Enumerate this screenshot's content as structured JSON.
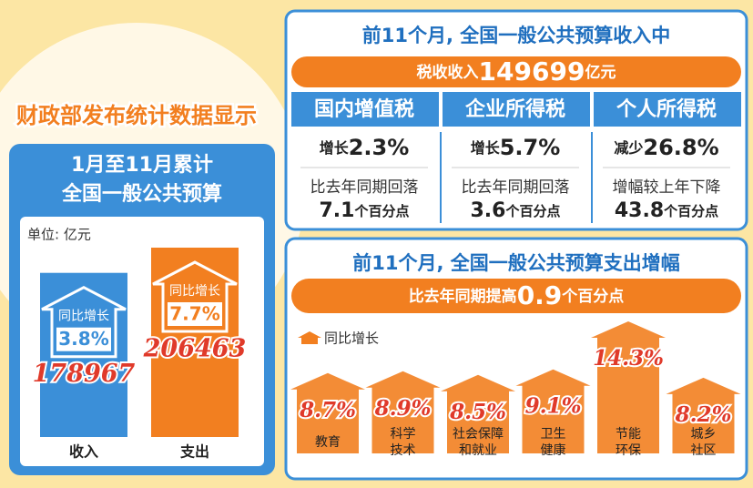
{
  "title": "财政部发布统计数据显示",
  "budget_panel": {
    "title_lines": [
      "1月至11月累计",
      "全国一般公共预算"
    ],
    "unit": "单位: 亿元"
  },
  "revenue_panel": {
    "title": "前11个月, 全国一般公共预算收入中",
    "banner": {
      "prefix": "税收收入",
      "value": 149699,
      "unit": "亿元"
    },
    "taxes": [
      {
        "name": "国内增值税",
        "change": "增长",
        "value": 2.3,
        "value_label": "2.3%",
        "note": "比去年同期回落",
        "points": 7.1,
        "points_unit": "个百分点"
      },
      {
        "name": "企业所得税",
        "change": "增长",
        "value": 5.7,
        "value_label": "5.7%",
        "note": "比去年同期回落",
        "points": 3.6,
        "points_unit": "个百分点"
      },
      {
        "name": "个人所得税",
        "change": "减少",
        "value": 26.8,
        "value_label": "26.8%",
        "note": "增幅较上年下降",
        "points": 43.8,
        "points_unit": "个百分点"
      }
    ]
  },
  "expenditure_panel": {
    "title": "前11个月, 全国一般公共预算支出增幅",
    "banner": {
      "prefix": "比去年同期提高",
      "value": 0.9,
      "unit": "个百分点"
    }
  },
  "chart_data": [
    {
      "type": "bar",
      "categories": [
        "收入",
        "支出"
      ],
      "values": [
        178967,
        206463
      ],
      "colors": [
        "#3b8fd8",
        "#f27f20"
      ],
      "growth_label": "同比增长",
      "growth": [
        3.8,
        7.7
      ],
      "growth_labels": [
        "3.8%",
        "7.7%"
      ]
    },
    {
      "type": "arrow",
      "legend": "同比增长",
      "color": "#f27f20",
      "categories": [
        [
          "教育"
        ],
        [
          "科学",
          "技术"
        ],
        [
          "社会保障",
          "和就业"
        ],
        [
          "卫生",
          "健康"
        ],
        [
          "节能",
          "环保"
        ],
        [
          "城乡",
          "社区"
        ]
      ],
      "values": [
        8.7,
        8.9,
        8.5,
        9.1,
        14.3,
        8.2
      ],
      "value_labels": [
        "8.7%",
        "8.9%",
        "8.5%",
        "9.1%",
        "14.3%",
        "8.2%"
      ]
    }
  ]
}
